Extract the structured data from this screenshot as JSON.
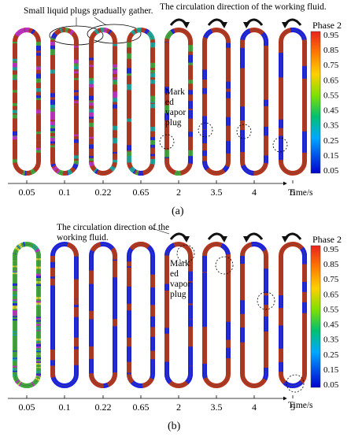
{
  "panel_a": {
    "annotation_top": "Small liquid plugs gradually gather.",
    "annotation_direction": "The circulation direction of the working fluid.",
    "marked_label_lines": [
      "Mark",
      "ed",
      "vapor",
      "plug"
    ],
    "time_ticks": [
      "0.05",
      "0.1",
      "0.22",
      "0.65",
      "2",
      "3.5",
      "4",
      "5"
    ],
    "time_unit": "Time/s",
    "panel_label": "(a)"
  },
  "panel_b": {
    "annotation_direction_lines": [
      "The circulation direction of the",
      "working fluid."
    ],
    "marked_label_lines": [
      "Mark",
      "ed",
      "vapor",
      "plug"
    ],
    "time_ticks": [
      "0.05",
      "0.1",
      "0.22",
      "0.65",
      "2",
      "3.5",
      "4",
      "5"
    ],
    "time_unit": "Time/s",
    "panel_label": "(b)"
  },
  "legend": {
    "title": "Phase 2",
    "ticks": [
      "0.95",
      "0.85",
      "0.75",
      "0.65",
      "0.55",
      "0.45",
      "0.35",
      "0.25",
      "0.15",
      "0.05"
    ],
    "colors": [
      "#e8231c",
      "#ff6a00",
      "#ffa500",
      "#ffe100",
      "#9be000",
      "#12c81a",
      "#00c8b0",
      "#00a0ff",
      "#1f3dff",
      "#0000d0"
    ]
  },
  "icons": {
    "circulation_arrow": "curved-arrow-icon",
    "marked_plug": "dashed-circle-icon"
  }
}
